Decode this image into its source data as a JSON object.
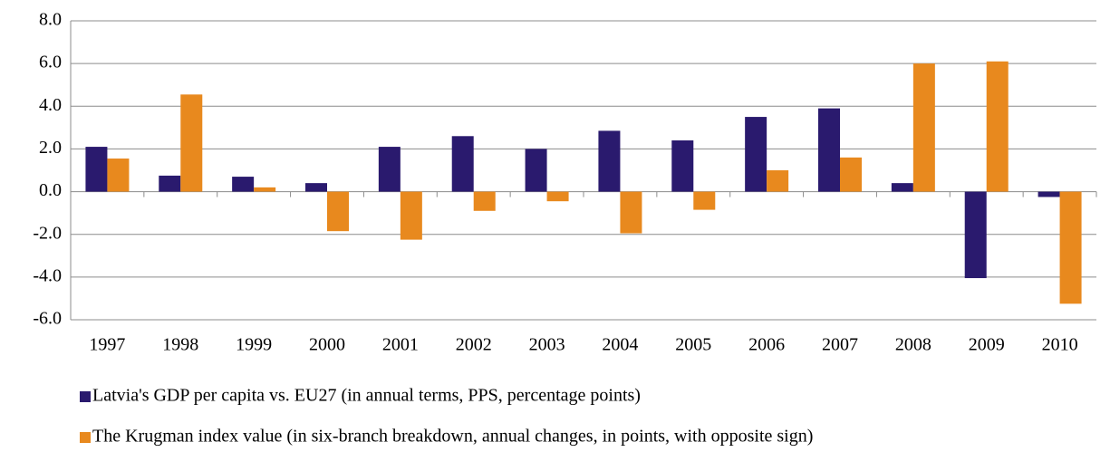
{
  "chart_data": {
    "type": "bar",
    "categories": [
      "1997",
      "1998",
      "1999",
      "2000",
      "2001",
      "2002",
      "2003",
      "2004",
      "2005",
      "2006",
      "2007",
      "2008",
      "2009",
      "2010"
    ],
    "series": [
      {
        "name": "Latvia's GDP per capita vs. EU27 (in annual terms, PPS, percentage points)",
        "color": "#2a1a6e",
        "values": [
          2.1,
          0.75,
          0.7,
          0.4,
          2.1,
          2.6,
          2.0,
          2.85,
          2.4,
          3.5,
          3.9,
          0.4,
          -4.05,
          -0.25
        ]
      },
      {
        "name": "The Krugman index value (in six-branch breakdown, annual changes, in points, with opposite sign)",
        "color": "#e8891e",
        "values": [
          1.55,
          4.55,
          0.2,
          -1.85,
          -2.25,
          -0.9,
          -0.45,
          -1.95,
          -0.85,
          1.0,
          1.6,
          6.0,
          6.1,
          -5.25
        ]
      }
    ],
    "ylim": [
      -6,
      8
    ],
    "yticks": [
      {
        "value": -6,
        "label": "-6.0"
      },
      {
        "value": -4,
        "label": "-4.0"
      },
      {
        "value": -2,
        "label": "-2.0"
      },
      {
        "value": 0,
        "label": "0.0"
      },
      {
        "value": 2,
        "label": "2.0"
      },
      {
        "value": 4,
        "label": "4.0"
      },
      {
        "value": 6,
        "label": "6.0"
      },
      {
        "value": 8,
        "label": "8.0"
      }
    ],
    "grid": true
  }
}
